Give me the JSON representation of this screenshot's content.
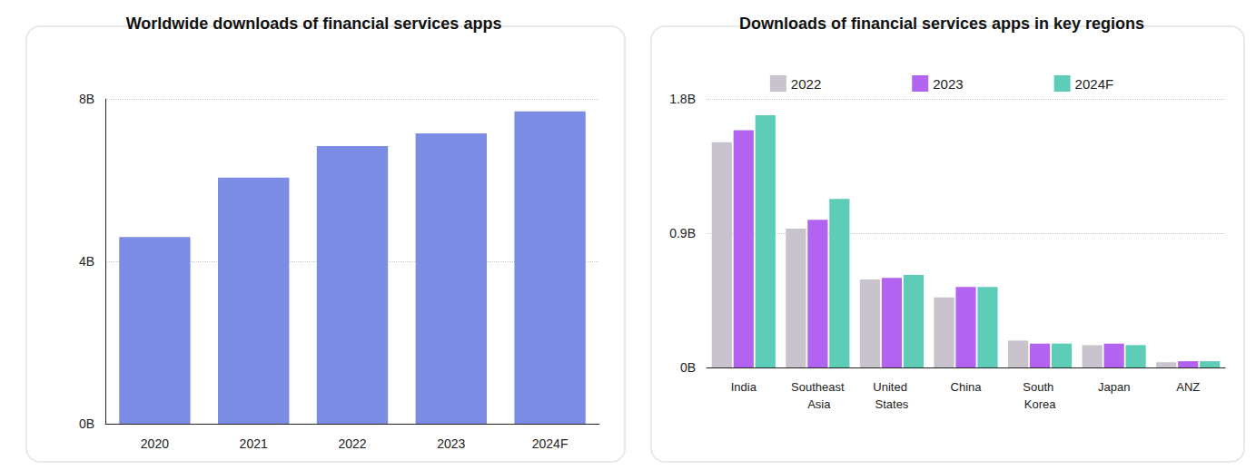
{
  "chart_data": [
    {
      "type": "bar",
      "title": "Worldwide downloads of financial services apps",
      "categories": [
        "2020",
        "2021",
        "2022",
        "2023",
        "2024F"
      ],
      "values": [
        4.6,
        6.06,
        6.84,
        7.15,
        7.69
      ],
      "color": "#7b8ce4",
      "ylim": [
        0,
        8
      ],
      "yticks": [
        {
          "value": 0,
          "label": "0B"
        },
        {
          "value": 4,
          "label": "4B"
        },
        {
          "value": 8,
          "label": "8B"
        }
      ],
      "grid": true
    },
    {
      "type": "bar",
      "title": "Downloads of financial services apps in key regions",
      "categories": [
        "India",
        "Southeast Asia",
        "United States",
        "China",
        "South Korea",
        "Japan",
        "ANZ"
      ],
      "series": [
        {
          "name": "2022",
          "color": "#c8c3cc",
          "values": [
            1.51,
            0.93,
            0.59,
            0.47,
            0.18,
            0.15,
            0.035
          ]
        },
        {
          "name": "2023",
          "color": "#b264f0",
          "values": [
            1.59,
            0.99,
            0.6,
            0.54,
            0.16,
            0.16,
            0.042
          ]
        },
        {
          "name": "2024F",
          "color": "#5ecdb8",
          "values": [
            1.69,
            1.13,
            0.62,
            0.54,
            0.16,
            0.15,
            0.042
          ]
        }
      ],
      "ylim": [
        0,
        1.8
      ],
      "yticks": [
        {
          "value": 0,
          "label": "0B"
        },
        {
          "value": 0.9,
          "label": "0.9B"
        },
        {
          "value": 1.8,
          "label": "1.8B"
        }
      ],
      "grid": true,
      "legend": "top"
    }
  ]
}
